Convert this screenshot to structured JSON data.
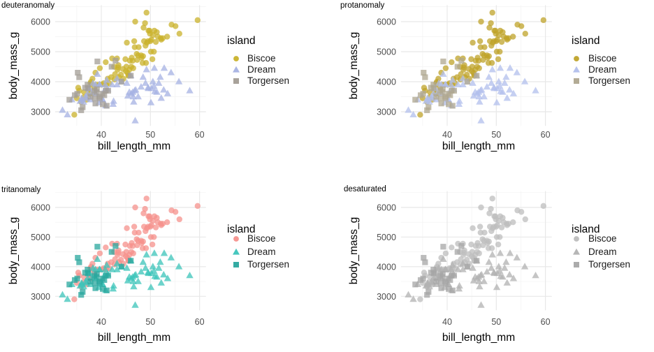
{
  "chart_data": {
    "type": "scatter",
    "description": "2x2 grid of color-vision-deficiency simulations of the same scatter plot (palmerpenguins): body_mass_g vs bill_length_mm, colored/shaped by island",
    "xlabel": "bill_length_mm",
    "ylabel": "body_mass_g",
    "legend_title": "island",
    "x_ticks": [
      40,
      50,
      60
    ],
    "y_ticks": [
      3000,
      4000,
      5000,
      6000
    ],
    "x_minor_gridlines": [
      35,
      45,
      55
    ],
    "y_minor_gridlines": [
      3500,
      4500,
      5500,
      6500
    ],
    "xlim": [
      30.6,
      61.3
    ],
    "ylim": [
      2530,
      6550
    ],
    "grid": {
      "major_color": "#e8e8e8",
      "minor_color": "#f3f3f3"
    },
    "tick_label_color": "#4d4d4d",
    "legend_position": "right",
    "marker_opacity": 0.75,
    "panels": [
      {
        "title": "deuteranomaly",
        "colors": [
          "#c9b22b",
          "#a6b2e3",
          "#a39d95"
        ]
      },
      {
        "title": "protanomaly",
        "colors": [
          "#bfa32a",
          "#b2bfec",
          "#afa78f"
        ]
      },
      {
        "title": "tritanomaly",
        "colors": [
          "#f5918c",
          "#3cc4ba",
          "#2aa79e"
        ]
      },
      {
        "title": "desaturated",
        "colors": [
          "#bdbdbd",
          "#b2b2b2",
          "#a6a6a6"
        ]
      }
    ],
    "series": [
      {
        "name": "Biscoe",
        "shape": "circle",
        "points": [
          [
            34.5,
            2900
          ],
          [
            35.0,
            3450
          ],
          [
            35.3,
            3800
          ],
          [
            35.5,
            3700
          ],
          [
            35.9,
            3325
          ],
          [
            36.4,
            3475
          ],
          [
            36.5,
            3650
          ],
          [
            37.0,
            3400
          ],
          [
            37.6,
            3600
          ],
          [
            37.7,
            3600
          ],
          [
            37.8,
            3950
          ],
          [
            37.9,
            4000
          ],
          [
            38.1,
            3900
          ],
          [
            38.2,
            4100
          ],
          [
            38.6,
            3800
          ],
          [
            38.8,
            4300
          ],
          [
            39.0,
            3900
          ],
          [
            39.6,
            3900
          ],
          [
            39.7,
            4450
          ],
          [
            40.1,
            3900
          ],
          [
            40.5,
            3950
          ],
          [
            41.0,
            3900
          ],
          [
            41.3,
            4100
          ],
          [
            41.6,
            3950
          ],
          [
            42.0,
            4150
          ],
          [
            42.2,
            4775
          ],
          [
            45.6,
            4200
          ],
          [
            40.9,
            4650
          ],
          [
            42.6,
            4500
          ],
          [
            42.7,
            4075
          ],
          [
            42.8,
            4250
          ],
          [
            43.2,
            4775
          ],
          [
            43.3,
            4400
          ],
          [
            43.4,
            4475
          ],
          [
            43.5,
            4550
          ],
          [
            43.6,
            4150
          ],
          [
            44.0,
            4235
          ],
          [
            44.4,
            4425
          ],
          [
            44.5,
            4100
          ],
          [
            44.9,
            4750
          ],
          [
            45.0,
            4350
          ],
          [
            45.1,
            4500
          ],
          [
            45.2,
            5300
          ],
          [
            45.3,
            4300
          ],
          [
            45.5,
            4200
          ],
          [
            45.7,
            4400
          ],
          [
            45.8,
            4700
          ],
          [
            46.1,
            4500
          ],
          [
            46.2,
            4800
          ],
          [
            46.4,
            4700
          ],
          [
            46.5,
            4450
          ],
          [
            46.7,
            5350
          ],
          [
            46.8,
            5150
          ],
          [
            46.9,
            6000
          ],
          [
            47.2,
            4925
          ],
          [
            47.3,
            4725
          ],
          [
            47.5,
            4875
          ],
          [
            47.6,
            5150
          ],
          [
            48.1,
            4875
          ],
          [
            48.2,
            4800
          ],
          [
            48.4,
            4625
          ],
          [
            48.5,
            4850
          ],
          [
            48.6,
            5800
          ],
          [
            48.7,
            5350
          ],
          [
            48.9,
            5950
          ],
          [
            49.0,
            5200
          ],
          [
            49.1,
            4625
          ],
          [
            49.2,
            6300
          ],
          [
            49.3,
            5300
          ],
          [
            49.5,
            5350
          ],
          [
            49.6,
            5700
          ],
          [
            49.8,
            5700
          ],
          [
            49.9,
            5600
          ],
          [
            50.0,
            5350
          ],
          [
            50.1,
            5000
          ],
          [
            50.2,
            5400
          ],
          [
            50.4,
            4750
          ],
          [
            50.5,
            5550
          ],
          [
            50.7,
            5000
          ],
          [
            50.8,
            5700
          ],
          [
            51.1,
            5325
          ],
          [
            51.3,
            5650
          ],
          [
            51.5,
            5500
          ],
          [
            52.1,
            5450
          ],
          [
            52.2,
            5400
          ],
          [
            52.5,
            5450
          ],
          [
            53.4,
            5500
          ],
          [
            54.3,
            5900
          ],
          [
            55.1,
            5850
          ],
          [
            55.9,
            5600
          ],
          [
            59.6,
            6050
          ]
        ]
      },
      {
        "name": "Dream",
        "shape": "triangle",
        "points": [
          [
            32.1,
            3050
          ],
          [
            33.1,
            2900
          ],
          [
            34.0,
            3400
          ],
          [
            35.7,
            3350
          ],
          [
            36.0,
            3400
          ],
          [
            36.0,
            3450
          ],
          [
            36.4,
            3325
          ],
          [
            36.8,
            3500
          ],
          [
            37.0,
            3450
          ],
          [
            37.2,
            3600
          ],
          [
            37.3,
            3775
          ],
          [
            37.5,
            3800
          ],
          [
            37.8,
            3400
          ],
          [
            38.1,
            3640
          ],
          [
            38.3,
            3950
          ],
          [
            38.8,
            3900
          ],
          [
            38.9,
            3600
          ],
          [
            39.2,
            4250
          ],
          [
            39.5,
            3300
          ],
          [
            39.6,
            3900
          ],
          [
            39.7,
            3900
          ],
          [
            40.2,
            3400
          ],
          [
            40.3,
            3400
          ],
          [
            40.7,
            3725
          ],
          [
            40.8,
            3900
          ],
          [
            41.1,
            4050
          ],
          [
            41.3,
            3750
          ],
          [
            42.2,
            3900
          ],
          [
            43.2,
            4100
          ],
          [
            44.1,
            4000
          ],
          [
            40.9,
            3200
          ],
          [
            42.4,
            3250
          ],
          [
            42.5,
            3350
          ],
          [
            43.2,
            3900
          ],
          [
            45.2,
            3950
          ],
          [
            45.4,
            3525
          ],
          [
            45.7,
            3650
          ],
          [
            46.0,
            4200
          ],
          [
            46.1,
            3600
          ],
          [
            46.4,
            3650
          ],
          [
            46.5,
            3500
          ],
          [
            46.6,
            3325
          ],
          [
            46.8,
            3700
          ],
          [
            46.9,
            2700
          ],
          [
            47.0,
            3725
          ],
          [
            47.5,
            3500
          ],
          [
            48.1,
            3825
          ],
          [
            48.5,
            4150
          ],
          [
            49.0,
            3950
          ],
          [
            49.2,
            4400
          ],
          [
            49.5,
            3800
          ],
          [
            49.6,
            3775
          ],
          [
            50.1,
            3300
          ],
          [
            50.2,
            3775
          ],
          [
            50.5,
            4000
          ],
          [
            50.7,
            3850
          ],
          [
            50.8,
            4450
          ],
          [
            50.9,
            3675
          ],
          [
            51.3,
            3650
          ],
          [
            51.7,
            3950
          ],
          [
            52.0,
            4150
          ],
          [
            52.2,
            3450
          ],
          [
            52.7,
            3725
          ],
          [
            52.8,
            4450
          ],
          [
            53.5,
            3600
          ],
          [
            54.2,
            4300
          ],
          [
            55.8,
            4000
          ],
          [
            58.0,
            3700
          ]
        ]
      },
      {
        "name": "Torgersen",
        "shape": "square",
        "points": [
          [
            33.5,
            3400
          ],
          [
            34.6,
            3550
          ],
          [
            35.1,
            3600
          ],
          [
            35.2,
            4300
          ],
          [
            35.5,
            4150
          ],
          [
            35.9,
            3050
          ],
          [
            36.2,
            3150
          ],
          [
            36.7,
            3800
          ],
          [
            37.2,
            3900
          ],
          [
            37.3,
            3775
          ],
          [
            37.8,
            3500
          ],
          [
            38.6,
            3700
          ],
          [
            38.7,
            3450
          ],
          [
            38.8,
            3275
          ],
          [
            39.0,
            3650
          ],
          [
            39.1,
            3750
          ],
          [
            39.2,
            4675
          ],
          [
            39.6,
            3500
          ],
          [
            39.7,
            3450
          ],
          [
            40.2,
            3600
          ],
          [
            40.3,
            3250
          ],
          [
            40.6,
            3550
          ],
          [
            40.9,
            3700
          ],
          [
            41.1,
            3200
          ],
          [
            41.4,
            3700
          ],
          [
            42.1,
            4500
          ],
          [
            42.9,
            4700
          ],
          [
            44.1,
            4000
          ],
          [
            46.0,
            4200
          ]
        ]
      }
    ]
  }
}
